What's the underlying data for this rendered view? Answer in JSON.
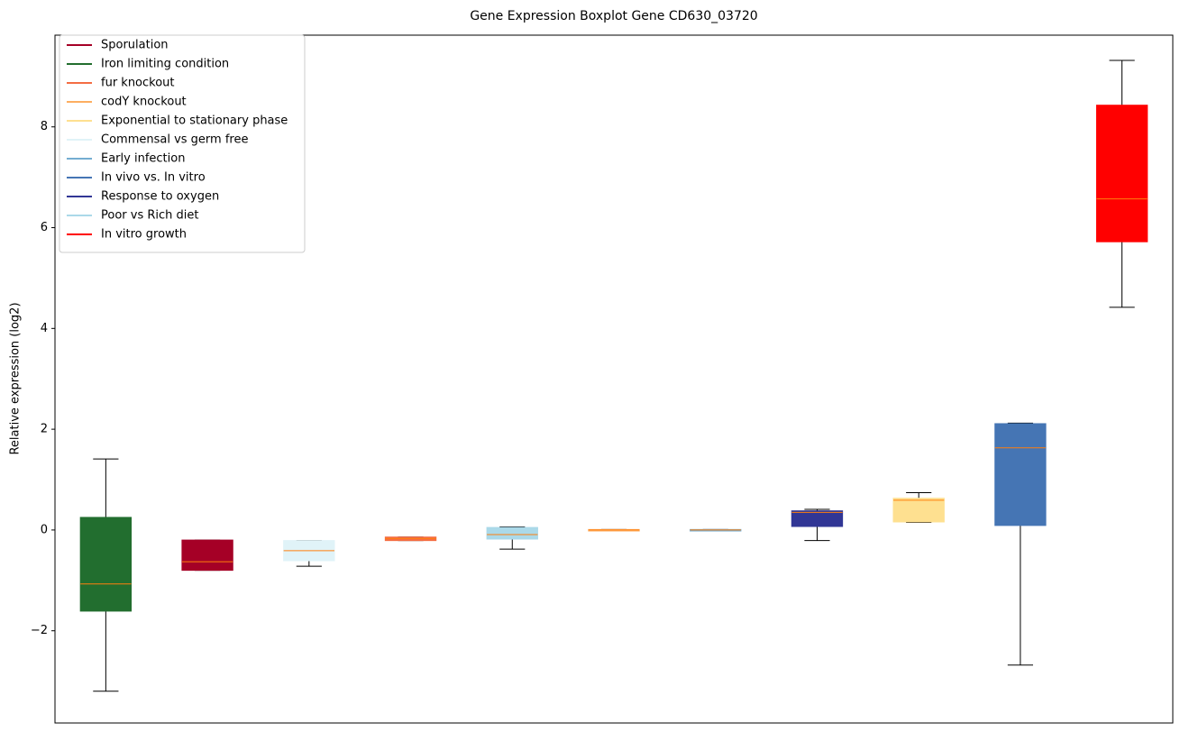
{
  "chart_data": {
    "type": "boxplot",
    "title": "Gene Expression Boxplot Gene CD630_03720",
    "ylabel": "Relative expression (log2)",
    "ylim": [
      -3.83,
      9.82
    ],
    "yticks": [
      {
        "value": -2,
        "label": "−2"
      },
      0,
      2,
      4,
      6,
      8
    ],
    "xlim": [
      0.5,
      11.5
    ],
    "legend_position": "upper left",
    "median_color": "#ff7f0e",
    "legend": [
      {
        "name": "Sporulation",
        "color": "#a50026"
      },
      {
        "name": "Iron limiting condition",
        "color": "#226e2f"
      },
      {
        "name": "fur knockout",
        "color": "#f46d43"
      },
      {
        "name": "codY knockout",
        "color": "#fdae61"
      },
      {
        "name": "Exponential to stationary phase",
        "color": "#fee090"
      },
      {
        "name": "Commensal vs germ free",
        "color": "#e0f3f8"
      },
      {
        "name": "Early infection",
        "color": "#74add1"
      },
      {
        "name": "In vivo vs. In vitro",
        "color": "#4575b4"
      },
      {
        "name": "Response to oxygen",
        "color": "#313695"
      },
      {
        "name": "Poor vs Rich diet",
        "color": "#abd9e9"
      },
      {
        "name": "In vitro growth",
        "color": "#ff0000"
      }
    ],
    "boxes": [
      {
        "color": "#226e2f",
        "whislo": -3.2,
        "q1": -1.61,
        "median": -1.07,
        "q3": 0.25,
        "whishi": 1.41
      },
      {
        "color": "#a50026",
        "whislo": -0.8,
        "q1": -0.8,
        "median": -0.63,
        "q3": -0.2,
        "whishi": -0.2
      },
      {
        "color": "#e0f3f8",
        "whislo": -0.72,
        "q1": -0.61,
        "median": -0.41,
        "q3": -0.21,
        "whishi": -0.21
      },
      {
        "color": "#f46d43",
        "whislo": -0.21,
        "q1": -0.21,
        "median": -0.17,
        "q3": -0.14,
        "whishi": -0.14
      },
      {
        "color": "#abd9e9",
        "whislo": -0.38,
        "q1": -0.18,
        "median": -0.09,
        "q3": 0.05,
        "whishi": 0.06
      },
      {
        "color": "#fdae61",
        "whislo": -0.02,
        "q1": -0.02,
        "median": 0,
        "q3": 0.01,
        "whishi": 0.01
      },
      {
        "color": "#74add1",
        "whislo": -0.02,
        "q1": -0.02,
        "median": 0,
        "q3": 0.01,
        "whishi": 0.01
      },
      {
        "color": "#313695",
        "whislo": -0.21,
        "q1": 0.07,
        "median": 0.35,
        "q3": 0.38,
        "whishi": 0.41
      },
      {
        "color": "#fee090",
        "whislo": 0.15,
        "q1": 0.16,
        "median": 0.59,
        "q3": 0.63,
        "whishi": 0.74
      },
      {
        "color": "#4575b4",
        "whislo": -2.68,
        "q1": 0.09,
        "median": 1.63,
        "q3": 2.11,
        "whishi": 2.12
      },
      {
        "color": "#ff0000",
        "whislo": 4.42,
        "q1": 5.72,
        "median": 6.57,
        "q3": 8.43,
        "whishi": 9.32
      }
    ]
  }
}
